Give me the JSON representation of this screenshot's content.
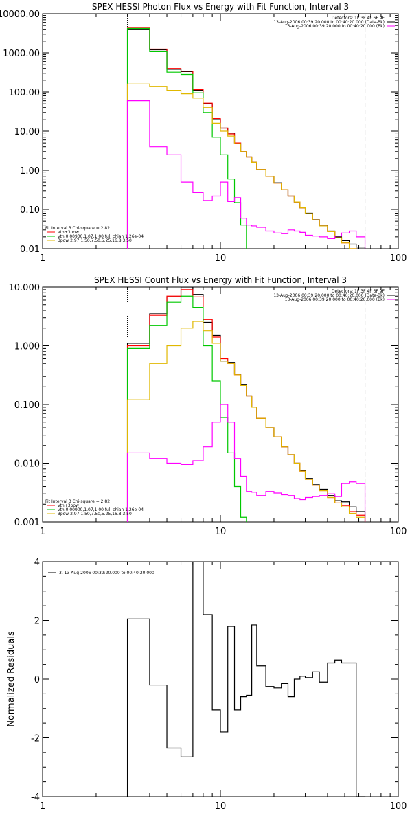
{
  "chart_data": [
    {
      "type": "line",
      "title": "SPEX HESSI Photon Flux vs Energy with Fit Function, Interval 3",
      "xscale": "log",
      "yscale": "log",
      "xlim": [
        1,
        100
      ],
      "ylim": [
        0.01,
        10000
      ],
      "xticks": [
        {
          "v": 1,
          "label": "1"
        },
        {
          "v": 10,
          "label": "10"
        },
        {
          "v": 100,
          "label": "100"
        }
      ],
      "yticks": [
        {
          "v": 0.01,
          "label": "0.01"
        },
        {
          "v": 0.1,
          "label": "0.10"
        },
        {
          "v": 1,
          "label": "1.00"
        },
        {
          "v": 10,
          "label": "10.00"
        },
        {
          "v": 100,
          "label": "100.00"
        },
        {
          "v": 1000,
          "label": "1000.00"
        },
        {
          "v": 10000,
          "label": "10000.00"
        }
      ],
      "vlines": [
        {
          "x": 3,
          "style": "dotted"
        },
        {
          "x": 65,
          "style": "dashed"
        }
      ],
      "info_lines": [
        {
          "text": "Detectors: 1F 3F 4F 6F 9F",
          "color": "#000000"
        },
        {
          "text": "13-Aug-2006 00:39:20.000 to 00:40:20.000 (Data-Bk)",
          "color": "#000000"
        },
        {
          "text": "13-Aug-2006 00:39:20.000 to 00:40:20.000 (Bk)",
          "color": "#ff00ff"
        }
      ],
      "fit_text": "Fit Interval 3   Chi-square = 2.82",
      "legend": [
        {
          "label": "vth+3pow",
          "color": "#ff0000"
        },
        {
          "label": "vth 0.00900,1.07,1.00  full chian 1.26e-04",
          "color": "#00c800"
        },
        {
          "label": "3pow 2.97,1.50,7.50,5.25,16.8,3.50",
          "color": "#e0b800"
        }
      ],
      "edges": [
        3,
        4,
        5,
        6,
        7,
        8,
        9,
        10,
        11,
        12,
        13,
        14,
        15,
        16,
        18,
        20,
        22,
        24,
        26,
        28,
        30,
        33,
        36,
        40,
        44,
        48,
        53,
        58,
        65
      ],
      "series": [
        {
          "name": "Data-Bk",
          "color": "#000000",
          "values": [
            4000,
            1200,
            380,
            330,
            110,
            50,
            20,
            12,
            9,
            5,
            3,
            2.2,
            1.6,
            1.05,
            0.7,
            0.48,
            0.32,
            0.22,
            0.155,
            0.11,
            0.08,
            0.055,
            0.04,
            0.028,
            0.02,
            0.016,
            0.013,
            0.011
          ]
        },
        {
          "name": "vth+3pow",
          "color": "#ff0000",
          "values": [
            4300,
            1250,
            400,
            340,
            115,
            52,
            21,
            12,
            8.5,
            5,
            3,
            2.2,
            1.6,
            1.05,
            0.7,
            0.47,
            0.32,
            0.22,
            0.155,
            0.11,
            0.078,
            0.054,
            0.038,
            0.027,
            0.019,
            0.014,
            0.01,
            0.0085
          ]
        },
        {
          "name": "vth",
          "color": "#00c800",
          "values": [
            4200,
            1100,
            320,
            280,
            95,
            30,
            7,
            2.5,
            0.6,
            0.15,
            0.04,
            0.008
          ]
        },
        {
          "name": "3pow",
          "color": "#e0b800",
          "values": [
            160,
            140,
            110,
            90,
            70,
            40,
            16,
            10,
            7.5,
            4.8,
            3,
            2.2,
            1.6,
            1.05,
            0.7,
            0.47,
            0.32,
            0.22,
            0.155,
            0.11,
            0.078,
            0.054,
            0.038,
            0.027,
            0.019,
            0.014,
            0.01,
            0.0085
          ]
        },
        {
          "name": "Bk",
          "color": "#ff00ff",
          "values": [
            60,
            4,
            2.5,
            0.5,
            0.27,
            0.17,
            0.22,
            0.5,
            0.16,
            0.2,
            0.06,
            0.04,
            0.038,
            0.035,
            0.028,
            0.025,
            0.024,
            0.03,
            0.028,
            0.026,
            0.022,
            0.021,
            0.02,
            0.018,
            0.021,
            0.025,
            0.028,
            0.02
          ]
        }
      ]
    },
    {
      "type": "line",
      "title": "SPEX HESSI Count Flux vs Energy with Fit Function, Interval 3",
      "xscale": "log",
      "yscale": "log",
      "xlim": [
        1,
        100
      ],
      "ylim": [
        0.001,
        10
      ],
      "xticks": [
        {
          "v": 1,
          "label": "1"
        },
        {
          "v": 10,
          "label": "10"
        },
        {
          "v": 100,
          "label": "100"
        }
      ],
      "yticks": [
        {
          "v": 0.001,
          "label": "0.001"
        },
        {
          "v": 0.01,
          "label": "0.010"
        },
        {
          "v": 0.1,
          "label": "0.100"
        },
        {
          "v": 1,
          "label": "1.000"
        },
        {
          "v": 10,
          "label": "10.000"
        }
      ],
      "vlines": [
        {
          "x": 3,
          "style": "dotted"
        },
        {
          "x": 65,
          "style": "dashed"
        }
      ],
      "info_lines": [
        {
          "text": "Detectors: 1F 3F 4F 6F 9F",
          "color": "#000000"
        },
        {
          "text": "13-Aug-2006 00:39:20.000 to 00:40:20.000 (Data-Bk)",
          "color": "#000000"
        },
        {
          "text": "13-Aug-2006 00:39:20.000 to 00:40:20.000 (Bk)",
          "color": "#ff00ff"
        }
      ],
      "fit_text": "Fit Interval 3   Chi-square = 2.82",
      "legend": [
        {
          "label": "vth+3pow",
          "color": "#ff0000"
        },
        {
          "label": "vth 0.00900,1.07,1.00  full chian 1.26e-04",
          "color": "#00c800"
        },
        {
          "label": "3pow 2.97,1.50,7.50,5.25,16.8,3.50",
          "color": "#e0b800"
        }
      ],
      "edges": [
        3,
        4,
        5,
        6,
        7,
        8,
        9,
        10,
        11,
        12,
        13,
        14,
        15,
        16,
        18,
        20,
        22,
        24,
        26,
        28,
        30,
        33,
        36,
        40,
        44,
        48,
        53,
        58,
        65
      ],
      "series": [
        {
          "name": "Data-Bk",
          "color": "#000000",
          "values": [
            1.1,
            3.5,
            6.8,
            10,
            7.5,
            2.5,
            1.5,
            0.55,
            0.52,
            0.33,
            0.22,
            0.14,
            0.09,
            0.058,
            0.04,
            0.028,
            0.019,
            0.014,
            0.01,
            0.0075,
            0.0055,
            0.0043,
            0.0036,
            0.0028,
            0.0023,
            0.0022,
            0.0018,
            0.0015
          ]
        },
        {
          "name": "vth+3pow",
          "color": "#ff0000",
          "values": [
            1.0,
            3.3,
            7.0,
            9.0,
            6.8,
            2.8,
            1.4,
            0.6,
            0.5,
            0.32,
            0.21,
            0.14,
            0.09,
            0.058,
            0.04,
            0.028,
            0.019,
            0.014,
            0.01,
            0.0073,
            0.0053,
            0.0042,
            0.0034,
            0.0026,
            0.0021,
            0.0019,
            0.0015,
            0.0013
          ]
        },
        {
          "name": "vth",
          "color": "#00c800",
          "values": [
            0.9,
            2.2,
            5.5,
            7.0,
            4.5,
            1.0,
            0.25,
            0.06,
            0.015,
            0.004,
            0.0012,
            0.0008
          ]
        },
        {
          "name": "3pow",
          "color": "#e0b800",
          "values": [
            0.12,
            0.5,
            1.0,
            2.0,
            2.6,
            1.8,
            1.1,
            0.55,
            0.5,
            0.32,
            0.21,
            0.14,
            0.09,
            0.058,
            0.04,
            0.028,
            0.019,
            0.014,
            0.01,
            0.0073,
            0.0053,
            0.0042,
            0.0034,
            0.0026,
            0.0021,
            0.0018,
            0.0014,
            0.0012
          ]
        },
        {
          "name": "Bk",
          "color": "#ff00ff",
          "values": [
            0.015,
            0.012,
            0.01,
            0.0095,
            0.011,
            0.019,
            0.05,
            0.1,
            0.05,
            0.012,
            0.006,
            0.0033,
            0.0032,
            0.0028,
            0.0033,
            0.0031,
            0.0029,
            0.0028,
            0.0025,
            0.0024,
            0.0026,
            0.0027,
            0.0028,
            0.003,
            0.0027,
            0.0045,
            0.0048,
            0.0045
          ]
        }
      ]
    },
    {
      "type": "line",
      "title": "",
      "ylabel": "Normalized Residuals",
      "xscale": "log",
      "yscale": "linear",
      "xlim": [
        1,
        100
      ],
      "ylim": [
        -4,
        4
      ],
      "xticks": [
        {
          "v": 1,
          "label": "1"
        },
        {
          "v": 10,
          "label": "10"
        },
        {
          "v": 100,
          "label": "100"
        }
      ],
      "yticks": [
        {
          "v": -4,
          "label": "-4"
        },
        {
          "v": -2,
          "label": "-2"
        },
        {
          "v": 0,
          "label": "0"
        },
        {
          "v": 2,
          "label": "2"
        },
        {
          "v": 4,
          "label": "4"
        }
      ],
      "legend": [
        {
          "label": "3, 13-Aug-2006 00:39:20.000 to 00:40:20.000",
          "color": "#000000"
        }
      ],
      "edges": [
        3,
        4,
        5,
        6,
        7,
        8,
        9,
        10,
        11,
        12,
        13,
        14,
        15,
        16,
        18,
        20,
        22,
        24,
        26,
        28,
        30,
        33,
        36,
        40,
        44,
        48,
        53,
        58,
        65
      ],
      "series": [
        {
          "name": "3, 13-Aug-2006 00:39:20.000 to 00:40:20.000",
          "color": "#000000",
          "values": [
            2.05,
            -0.2,
            -2.35,
            -2.65,
            4.0,
            2.2,
            -1.05,
            -1.8,
            1.8,
            -1.05,
            -0.6,
            -0.55,
            1.85,
            0.45,
            -0.25,
            -0.3,
            -0.15,
            -0.6,
            0.0,
            0.1,
            0.05,
            0.25,
            -0.1,
            0.55,
            0.65,
            0.55,
            0.55,
            -4.0
          ],
          "closed_ends": true
        }
      ]
    }
  ]
}
